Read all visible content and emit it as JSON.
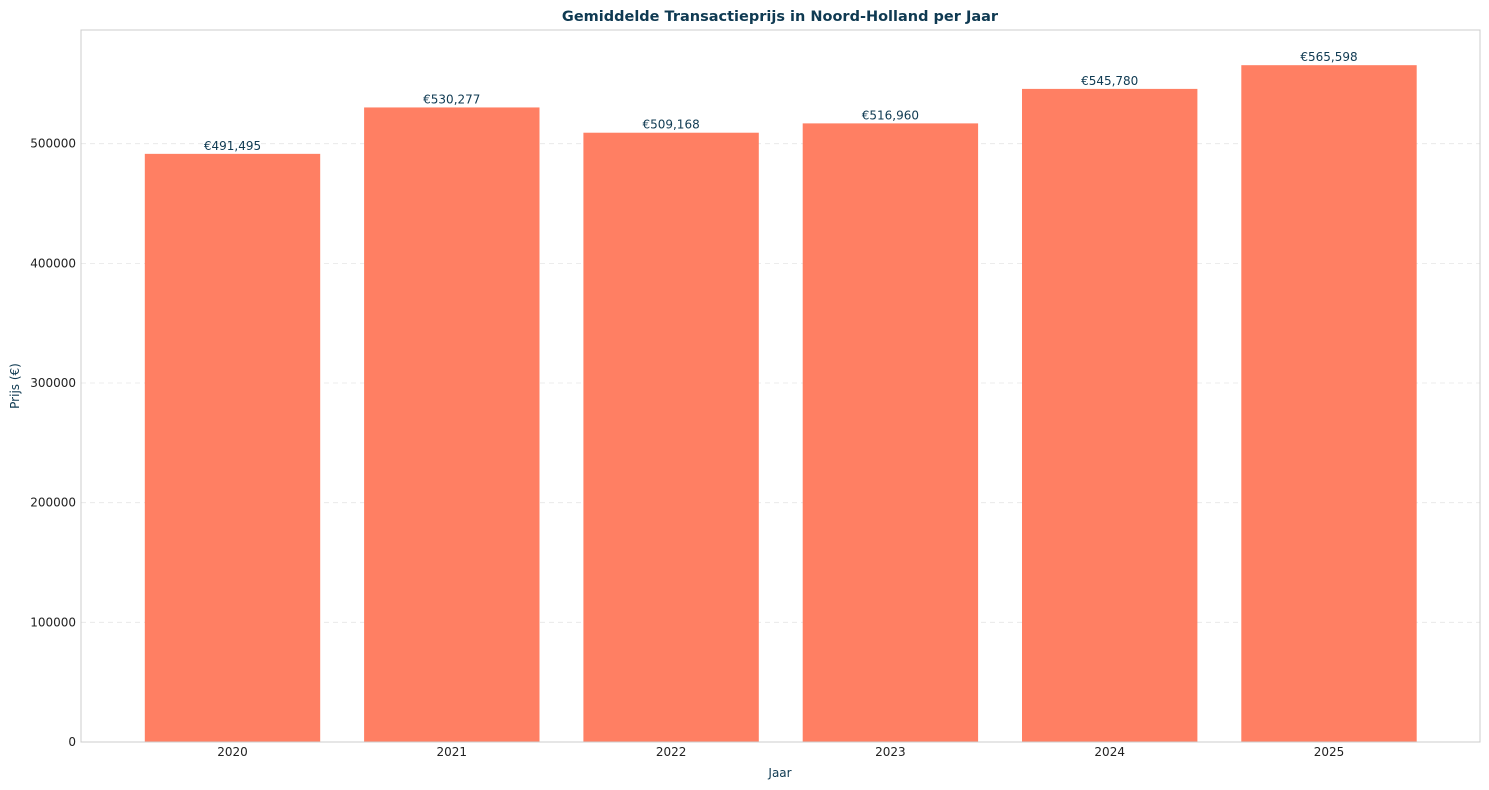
{
  "colors": {
    "bar": "#ff7f63",
    "text_dark": "#0f3a52",
    "tick_text": "#222222",
    "axes_edge": "#cccccc",
    "grid": "#e6e6e6"
  },
  "chart_data": {
    "type": "bar",
    "title": "Gemiddelde Transactieprijs in Noord-Holland per Jaar",
    "xlabel": "Jaar",
    "ylabel": "Prijs (€)",
    "categories": [
      "2020",
      "2021",
      "2022",
      "2023",
      "2024",
      "2025"
    ],
    "values": [
      491495,
      530277,
      509168,
      516960,
      545780,
      565598
    ],
    "value_labels": [
      "€491,495",
      "€530,277",
      "€509,168",
      "€516,960",
      "€545,780",
      "€565,598"
    ],
    "ylim": [
      0,
      595000
    ],
    "yticks": [
      0,
      100000,
      200000,
      300000,
      400000,
      500000
    ],
    "ytick_labels": [
      "0",
      "100000",
      "200000",
      "300000",
      "400000",
      "500000"
    ],
    "grid": "horizontal-dashed",
    "legend": "none"
  }
}
